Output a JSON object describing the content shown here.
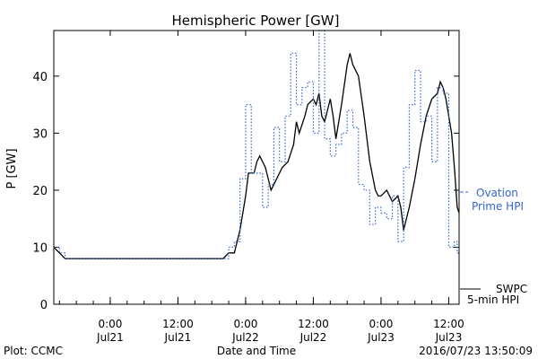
{
  "chart_data": {
    "type": "line",
    "title": "Hemispheric Power [GW]",
    "xlabel": "Date and Time",
    "ylabel": "P [GW]",
    "xlim": [
      "2016-07-20T14:00",
      "2016-07-23T13:50"
    ],
    "ylim": [
      0,
      48
    ],
    "grid": false,
    "x_ticks": [
      {
        "t": "2016-07-21T00:00",
        "label": [
          "0:00",
          "Jul21"
        ]
      },
      {
        "t": "2016-07-21T12:00",
        "label": [
          "12:00",
          "Jul21"
        ]
      },
      {
        "t": "2016-07-22T00:00",
        "label": [
          "0:00",
          "Jul22"
        ]
      },
      {
        "t": "2016-07-22T12:00",
        "label": [
          "12:00",
          "Jul22"
        ]
      },
      {
        "t": "2016-07-23T00:00",
        "label": [
          "0:00",
          "Jul23"
        ]
      },
      {
        "t": "2016-07-23T12:00",
        "label": [
          "12:00",
          "Jul23"
        ]
      }
    ],
    "y_ticks": [
      0,
      10,
      20,
      30,
      40
    ],
    "series": [
      {
        "name": "SWPC 5-min HPI",
        "legend": [
          "SWPC",
          "5-min HPI"
        ],
        "color": "#000000",
        "style": "solid",
        "points": [
          [
            "2016-07-20T14:00",
            10
          ],
          [
            "2016-07-20T15:00",
            9
          ],
          [
            "2016-07-20T16:00",
            8
          ],
          [
            "2016-07-21T00:00",
            8
          ],
          [
            "2016-07-21T12:00",
            8
          ],
          [
            "2016-07-21T20:00",
            8
          ],
          [
            "2016-07-21T21:00",
            9
          ],
          [
            "2016-07-21T22:00",
            9
          ],
          [
            "2016-07-21T23:00",
            13
          ],
          [
            "2016-07-22T00:00",
            19
          ],
          [
            "2016-07-22T00:30",
            23
          ],
          [
            "2016-07-22T01:30",
            23
          ],
          [
            "2016-07-22T02:00",
            25
          ],
          [
            "2016-07-22T02:30",
            26
          ],
          [
            "2016-07-22T03:30",
            24
          ],
          [
            "2016-07-22T04:30",
            20
          ],
          [
            "2016-07-22T05:30",
            22
          ],
          [
            "2016-07-22T06:30",
            24
          ],
          [
            "2016-07-22T07:30",
            25
          ],
          [
            "2016-07-22T08:30",
            28
          ],
          [
            "2016-07-22T09:00",
            32
          ],
          [
            "2016-07-22T09:30",
            30
          ],
          [
            "2016-07-22T10:30",
            33
          ],
          [
            "2016-07-22T11:00",
            35
          ],
          [
            "2016-07-22T12:00",
            36
          ],
          [
            "2016-07-22T12:30",
            35
          ],
          [
            "2016-07-22T13:00",
            37
          ],
          [
            "2016-07-22T13:30",
            33
          ],
          [
            "2016-07-22T14:00",
            32
          ],
          [
            "2016-07-22T15:00",
            36
          ],
          [
            "2016-07-22T15:30",
            33
          ],
          [
            "2016-07-22T16:00",
            29
          ],
          [
            "2016-07-22T17:00",
            35
          ],
          [
            "2016-07-22T18:00",
            42
          ],
          [
            "2016-07-22T18:30",
            44
          ],
          [
            "2016-07-22T19:00",
            42
          ],
          [
            "2016-07-22T20:00",
            40
          ],
          [
            "2016-07-22T21:00",
            33
          ],
          [
            "2016-07-22T22:00",
            25
          ],
          [
            "2016-07-22T23:00",
            20
          ],
          [
            "2016-07-22T23:30",
            19
          ],
          [
            "2016-07-23T00:00",
            19
          ],
          [
            "2016-07-23T01:00",
            20
          ],
          [
            "2016-07-23T02:00",
            18
          ],
          [
            "2016-07-23T03:00",
            19
          ],
          [
            "2016-07-23T03:30",
            17
          ],
          [
            "2016-07-23T04:00",
            13
          ],
          [
            "2016-07-23T05:00",
            17
          ],
          [
            "2016-07-23T06:00",
            22
          ],
          [
            "2016-07-23T07:00",
            28
          ],
          [
            "2016-07-23T08:00",
            33
          ],
          [
            "2016-07-23T09:00",
            36
          ],
          [
            "2016-07-23T10:00",
            37
          ],
          [
            "2016-07-23T10:30",
            39
          ],
          [
            "2016-07-23T11:00",
            38
          ],
          [
            "2016-07-23T11:30",
            36
          ],
          [
            "2016-07-23T12:00",
            33
          ],
          [
            "2016-07-23T12:30",
            30
          ],
          [
            "2016-07-23T13:00",
            24
          ],
          [
            "2016-07-23T13:30",
            17
          ],
          [
            "2016-07-23T13:50",
            16
          ]
        ]
      },
      {
        "name": "Ovation Prime HPI",
        "legend": [
          "Ovation",
          "Prime HPI"
        ],
        "color": "#3366cc",
        "style": "dotted-step",
        "points": [
          [
            "2016-07-20T14:00",
            10
          ],
          [
            "2016-07-20T15:00",
            9
          ],
          [
            "2016-07-20T16:00",
            8
          ],
          [
            "2016-07-21T21:00",
            10
          ],
          [
            "2016-07-21T22:00",
            11
          ],
          [
            "2016-07-21T23:00",
            22
          ],
          [
            "2016-07-22T00:00",
            35
          ],
          [
            "2016-07-22T01:00",
            23
          ],
          [
            "2016-07-22T03:00",
            17
          ],
          [
            "2016-07-22T04:00",
            21
          ],
          [
            "2016-07-22T05:00",
            31
          ],
          [
            "2016-07-22T06:00",
            25
          ],
          [
            "2016-07-22T07:00",
            33
          ],
          [
            "2016-07-22T08:00",
            44
          ],
          [
            "2016-07-22T09:00",
            35
          ],
          [
            "2016-07-22T10:00",
            38
          ],
          [
            "2016-07-22T11:00",
            39
          ],
          [
            "2016-07-22T12:00",
            30
          ],
          [
            "2016-07-22T13:00",
            48
          ],
          [
            "2016-07-22T14:00",
            29
          ],
          [
            "2016-07-22T15:00",
            26
          ],
          [
            "2016-07-22T16:00",
            28
          ],
          [
            "2016-07-22T17:00",
            30
          ],
          [
            "2016-07-22T18:00",
            34
          ],
          [
            "2016-07-22T19:00",
            31
          ],
          [
            "2016-07-22T20:00",
            21
          ],
          [
            "2016-07-22T21:00",
            20
          ],
          [
            "2016-07-22T22:00",
            14
          ],
          [
            "2016-07-22T23:00",
            17
          ],
          [
            "2016-07-23T00:00",
            16
          ],
          [
            "2016-07-23T01:00",
            15
          ],
          [
            "2016-07-23T02:00",
            19
          ],
          [
            "2016-07-23T03:00",
            11
          ],
          [
            "2016-07-23T04:00",
            24
          ],
          [
            "2016-07-23T05:00",
            35
          ],
          [
            "2016-07-23T06:00",
            41
          ],
          [
            "2016-07-23T07:00",
            32
          ],
          [
            "2016-07-23T08:00",
            33
          ],
          [
            "2016-07-23T09:00",
            25
          ],
          [
            "2016-07-23T10:00",
            38
          ],
          [
            "2016-07-23T11:00",
            37
          ],
          [
            "2016-07-23T12:00",
            10
          ],
          [
            "2016-07-23T13:00",
            11
          ],
          [
            "2016-07-23T13:30",
            9
          ],
          [
            "2016-07-23T13:50",
            9
          ]
        ]
      }
    ]
  },
  "footer": {
    "plot_source": "Plot: CCMC",
    "timestamp": "2016/07/23 13:50:09"
  }
}
